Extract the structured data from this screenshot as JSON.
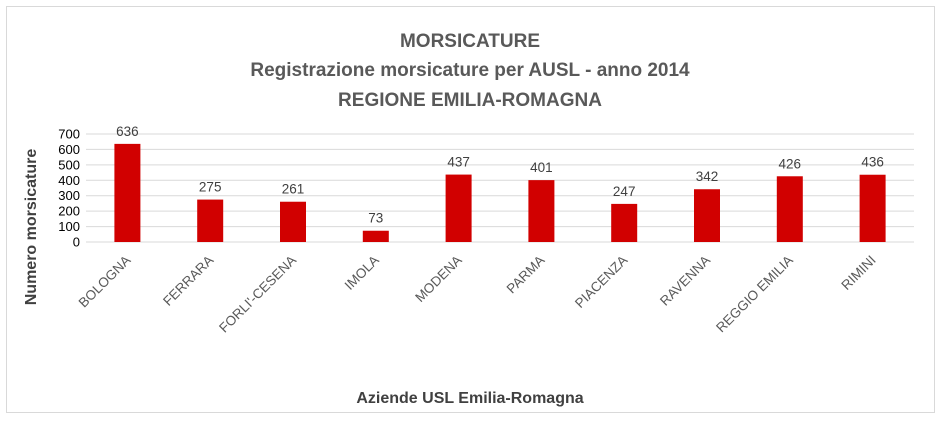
{
  "chart_data": {
    "type": "bar",
    "title": [
      "MORSICATURE",
      "Registrazione morsicature per AUSL - anno 2014",
      "REGIONE EMILIA-ROMAGNA"
    ],
    "categories": [
      "BOLOGNA",
      "FERRARA",
      "FORLI'-CESENA",
      "IMOLA",
      "MODENA",
      "PARMA",
      "PIACENZA",
      "RAVENNA",
      "REGGIO EMILIA",
      "RIMINI"
    ],
    "values": [
      636,
      275,
      261,
      73,
      437,
      401,
      247,
      342,
      426,
      436
    ],
    "xlabel": "Aziende USL Emilia-Romagna",
    "ylabel": "Numero morsicature",
    "ylim": [
      0,
      700
    ],
    "yticks": [
      0,
      100,
      200,
      300,
      400,
      500,
      600,
      700
    ],
    "grid": true,
    "legend": "none",
    "bar_color": "#d10000"
  }
}
